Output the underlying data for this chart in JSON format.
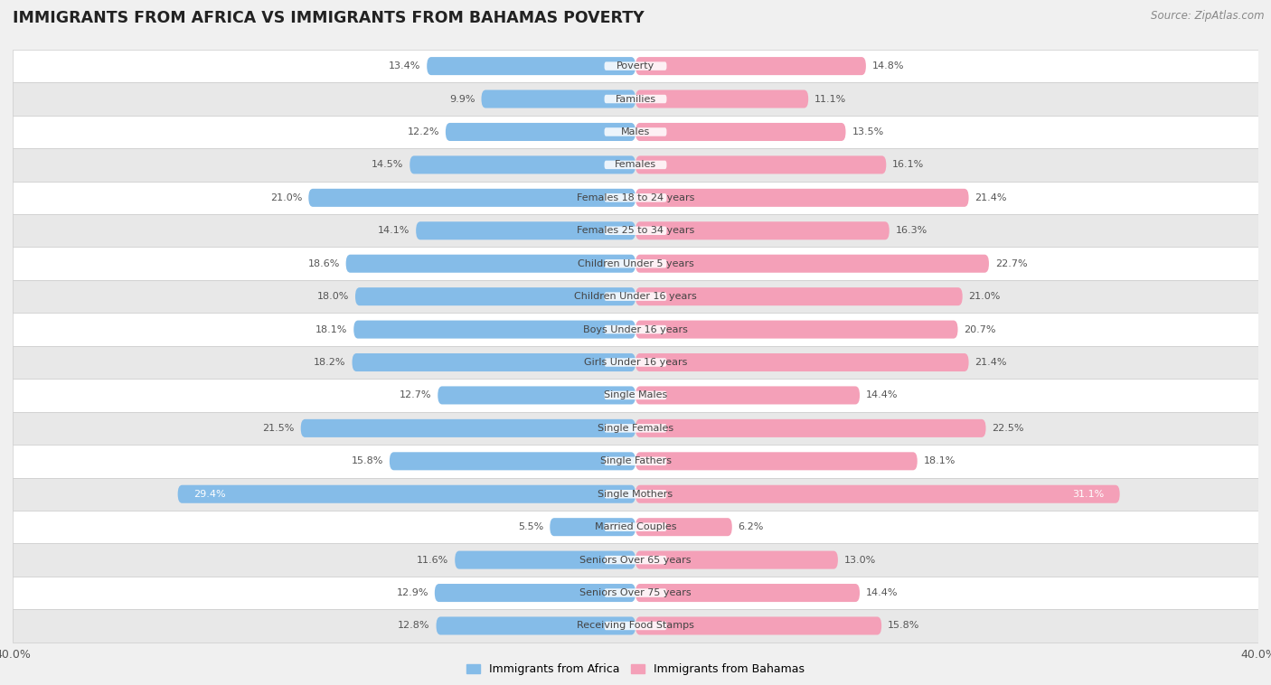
{
  "title": "IMMIGRANTS FROM AFRICA VS IMMIGRANTS FROM BAHAMAS POVERTY",
  "source": "Source: ZipAtlas.com",
  "categories": [
    "Poverty",
    "Families",
    "Males",
    "Females",
    "Females 18 to 24 years",
    "Females 25 to 34 years",
    "Children Under 5 years",
    "Children Under 16 years",
    "Boys Under 16 years",
    "Girls Under 16 years",
    "Single Males",
    "Single Females",
    "Single Fathers",
    "Single Mothers",
    "Married Couples",
    "Seniors Over 65 years",
    "Seniors Over 75 years",
    "Receiving Food Stamps"
  ],
  "africa_values": [
    13.4,
    9.9,
    12.2,
    14.5,
    21.0,
    14.1,
    18.6,
    18.0,
    18.1,
    18.2,
    12.7,
    21.5,
    15.8,
    29.4,
    5.5,
    11.6,
    12.9,
    12.8
  ],
  "bahamas_values": [
    14.8,
    11.1,
    13.5,
    16.1,
    21.4,
    16.3,
    22.7,
    21.0,
    20.7,
    21.4,
    14.4,
    22.5,
    18.1,
    31.1,
    6.2,
    13.0,
    14.4,
    15.8
  ],
  "africa_color": "#85BCE8",
  "bahamas_color": "#F4A0B8",
  "africa_label": "Immigrants from Africa",
  "bahamas_label": "Immigrants from Bahamas",
  "xlim": 40.0,
  "bg_color": "#f0f0f0",
  "row_colors": [
    "#ffffff",
    "#e8e8e8"
  ],
  "row_border_color": "#cccccc",
  "title_fontsize": 12.5,
  "source_fontsize": 8.5,
  "cat_fontsize": 8.0,
  "value_fontsize": 8.0,
  "legend_fontsize": 9.0
}
